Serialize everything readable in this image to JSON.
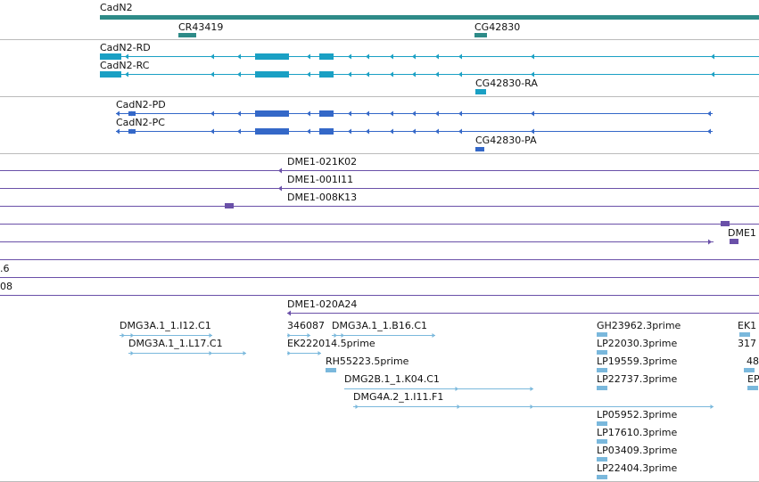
{
  "colors": {
    "gene": "#2e8b88",
    "transcript_rc": "#1aa0c4",
    "transcript_pc": "#3468c8",
    "clone": "#6a50a8",
    "est": "#7ab8dc",
    "separator": "#bbbbbb"
  },
  "gene_track": {
    "labels": [
      "CadN2",
      "CR43419",
      "CG42830"
    ]
  },
  "transcripts_r": {
    "labels": [
      "CadN2-RD",
      "CadN2-RC",
      "CG42830-RA"
    ]
  },
  "transcripts_p": {
    "labels": [
      "CadN2-PD",
      "CadN2-PC",
      "CG42830-PA"
    ]
  },
  "clones": {
    "labels": [
      "DME1-021K02",
      "DME1-001I11",
      "DME1-008K13",
      "DME1",
      ".6",
      "08",
      "DME1-020A24"
    ]
  },
  "ests": {
    "labels": [
      "DMG3A.1_1.I12.C1",
      "DMG3A.1_1.L17.C1",
      "346087",
      "DMG3A.1_1.B16.C1",
      "EK222014.5prime",
      "RH55223.5prime",
      "DMG2B.1_1.K04.C1",
      "DMG4A.2_1.I11.F1",
      "GH23962.3prime",
      "LP22030.3prime",
      "LP19559.3prime",
      "LP22737.3prime",
      "LP05952.3prime",
      "LP17610.3prime",
      "LP03409.3prime",
      "LP22404.3prime",
      "EK1",
      "317",
      "48",
      "EP"
    ]
  }
}
